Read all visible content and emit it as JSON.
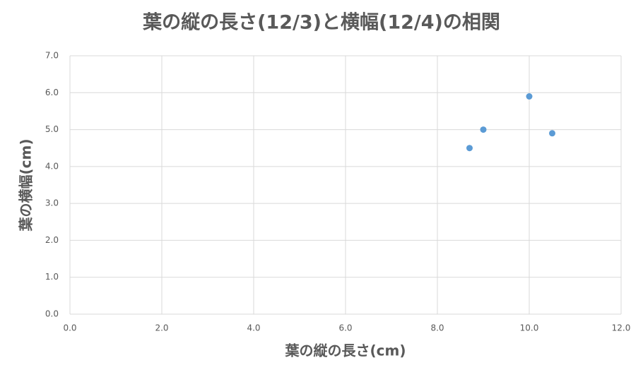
{
  "chart_data": {
    "type": "scatter",
    "title": "葉の縦の長さ(12/3)と横幅(12/4)の相関",
    "x_label": "葉の縦の長さ(cm)",
    "y_label": "葉の横幅(cm)",
    "x": [
      8.7,
      9.0,
      10.0,
      10.5
    ],
    "values": [
      4.5,
      5.0,
      5.9,
      4.9
    ],
    "color": "#5b9bd5",
    "xlim": [
      0,
      12
    ],
    "ylim": [
      0,
      7
    ],
    "xticks": [
      {
        "value": 0,
        "label": "0.0"
      },
      {
        "value": 2,
        "label": "2.0"
      },
      {
        "value": 4,
        "label": "4.0"
      },
      {
        "value": 6,
        "label": "6.0"
      },
      {
        "value": 8,
        "label": "8.0"
      },
      {
        "value": 10,
        "label": "10.0"
      },
      {
        "value": 12,
        "label": "12.0"
      }
    ],
    "yticks": [
      {
        "value": 0,
        "label": "0.0"
      },
      {
        "value": 1,
        "label": "1.0"
      },
      {
        "value": 2,
        "label": "2.0"
      },
      {
        "value": 3,
        "label": "3.0"
      },
      {
        "value": 4,
        "label": "4.0"
      },
      {
        "value": 5,
        "label": "5.0"
      },
      {
        "value": 6,
        "label": "6.0"
      },
      {
        "value": 7,
        "label": "7.0"
      }
    ],
    "grid": true
  }
}
